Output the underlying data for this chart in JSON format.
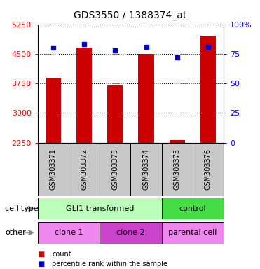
{
  "title": "GDS3550 / 1388374_at",
  "samples": [
    "GSM303371",
    "GSM303372",
    "GSM303373",
    "GSM303374",
    "GSM303375",
    "GSM303376"
  ],
  "counts": [
    3900,
    4650,
    3700,
    4500,
    2320,
    4950
  ],
  "percentiles": [
    80,
    83,
    78,
    81,
    72,
    81
  ],
  "ymin": 2250,
  "ymax": 5250,
  "yticks": [
    2250,
    3000,
    3750,
    4500,
    5250
  ],
  "right_yticks": [
    0,
    25,
    50,
    75,
    100
  ],
  "right_ytick_labels": [
    "0",
    "25",
    "50",
    "75",
    "100%"
  ],
  "bar_color": "#cc0000",
  "dot_color": "#0000cc",
  "bar_width": 0.5,
  "background_sample": "#c8c8c8",
  "cell_type_gli1_color": "#bbffbb",
  "cell_type_control_color": "#44dd44",
  "clone1_color": "#ee88ee",
  "clone2_color": "#cc44cc",
  "parental_color": "#ee88ee",
  "legend_count_color": "#cc0000",
  "legend_pct_color": "#0000cc",
  "title_fontsize": 10,
  "tick_fontsize": 8,
  "label_fontsize": 8,
  "sample_fontsize": 7
}
